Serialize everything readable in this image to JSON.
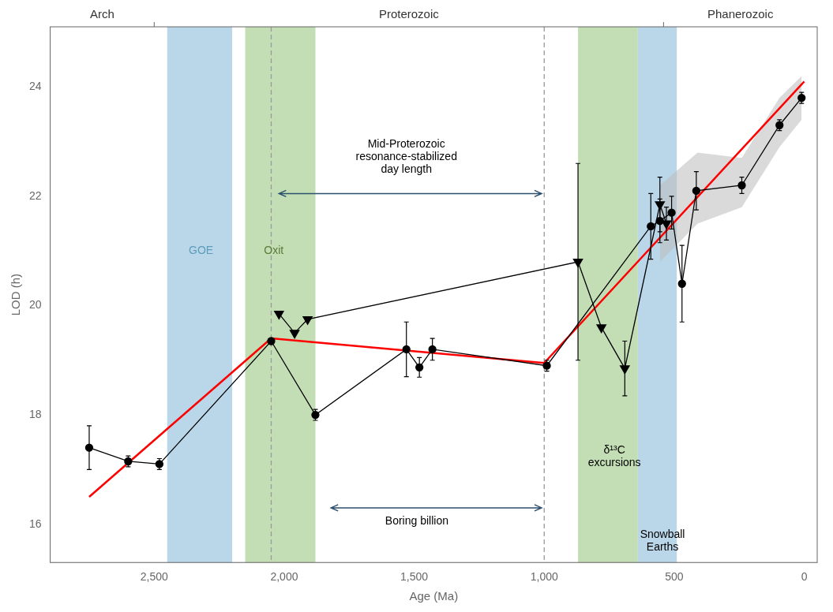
{
  "chart_data": {
    "type": "scatter",
    "xlabel": "Age (Ma)",
    "ylabel": "LOD (h)",
    "xlim": [
      2900,
      -50
    ],
    "ylim": [
      15.3,
      25.1
    ],
    "xticks": [
      {
        "value": 2500,
        "label": "2,500"
      },
      {
        "value": 2000,
        "label": "2,000"
      },
      {
        "value": 1500,
        "label": "1,500"
      },
      {
        "value": 1000,
        "label": "1,000"
      },
      500,
      0
    ],
    "yticks": [
      16,
      18,
      20,
      22,
      24
    ],
    "grid": false,
    "bands": [
      {
        "color": "#aed0e6",
        "ranges": [
          [
            2450,
            2200
          ],
          [
            640,
            490
          ]
        ]
      },
      {
        "color": "#b8d8a8",
        "ranges": [
          [
            2150,
            1880
          ],
          [
            870,
            640
          ]
        ]
      }
    ],
    "vlines": {
      "x": [
        2050,
        1000
      ],
      "color": "#999999",
      "line_style": "dashed"
    },
    "gray_band": {
      "color": "#bbbbbb",
      "x": [
        555,
        410,
        240,
        95,
        10
      ],
      "y_low": [
        20.8,
        21.5,
        21.8,
        22.9,
        23.4
      ],
      "y_high": [
        22.2,
        22.8,
        22.7,
        23.8,
        24.2
      ]
    },
    "trend_line": {
      "color": "red",
      "segments": [
        {
          "x": [
            2750,
            2050
          ],
          "y": [
            16.5,
            19.4
          ]
        },
        {
          "x": [
            2050,
            1000
          ],
          "y": [
            19.4,
            18.95
          ]
        },
        {
          "x": [
            1000,
            0
          ],
          "y": [
            18.95,
            24.1
          ]
        }
      ]
    },
    "triangle_points": {
      "marker": "triangle_down",
      "color": "black",
      "x": [
        2020,
        1960,
        1910,
        870,
        780,
        690,
        555,
        530
      ],
      "y": [
        19.85,
        19.5,
        19.75,
        20.8,
        19.6,
        18.85,
        21.85,
        21.5
      ],
      "yerr": [
        0.0,
        0.0,
        0.0,
        1.8,
        0.0,
        0.5,
        0.5,
        0.3
      ]
    },
    "circle_points": {
      "marker": "circle",
      "color": "black",
      "x": [
        2750,
        2600,
        2480,
        2050,
        1880,
        1530,
        1480,
        1430,
        990,
        590,
        555,
        510,
        470,
        415,
        240,
        95,
        10
      ],
      "y": [
        17.4,
        17.15,
        17.1,
        19.35,
        18.0,
        19.2,
        18.87,
        19.2,
        18.9,
        21.45,
        21.55,
        21.7,
        20.4,
        22.1,
        22.2,
        23.3,
        23.8
      ],
      "yerr": [
        0.4,
        0.1,
        0.1,
        0.0,
        0.1,
        0.5,
        0.18,
        0.2,
        0.1,
        0.6,
        0.4,
        0.3,
        0.7,
        0.35,
        0.15,
        0.1,
        0.1
      ]
    },
    "eras": {
      "labels": [
        "Arch",
        "Proterozoic",
        "Phanerozoic"
      ],
      "dividers": [
        2500,
        541
      ]
    },
    "annotations": [
      {
        "text": "GOE",
        "x": 2320,
        "y": 21.0,
        "color": "#5b9dba"
      },
      {
        "text": "Oxit",
        "x": 2040,
        "y": 21.0,
        "color": "#5a7a3a"
      },
      {
        "text": "Mid-Proterozoic\nresonance-stabilized\nday length",
        "x": 1530,
        "y": 23.05,
        "color": "black"
      },
      {
        "text": "Boring billion",
        "x": 1490,
        "y": 16.05,
        "color": "black"
      },
      {
        "text": "δ¹³C\nexcursions",
        "x": 730,
        "y": 17.45,
        "color": "black"
      },
      {
        "text": "Snowball\nEarths",
        "x": 545,
        "y": 15.9,
        "color": "black"
      }
    ],
    "arrows": [
      {
        "x1": 2020,
        "x2": 1010,
        "y": 22.05,
        "color": "#2d4f6e"
      },
      {
        "x1": 1820,
        "x2": 1010,
        "y": 16.3,
        "color": "#2d4f6e"
      }
    ]
  }
}
